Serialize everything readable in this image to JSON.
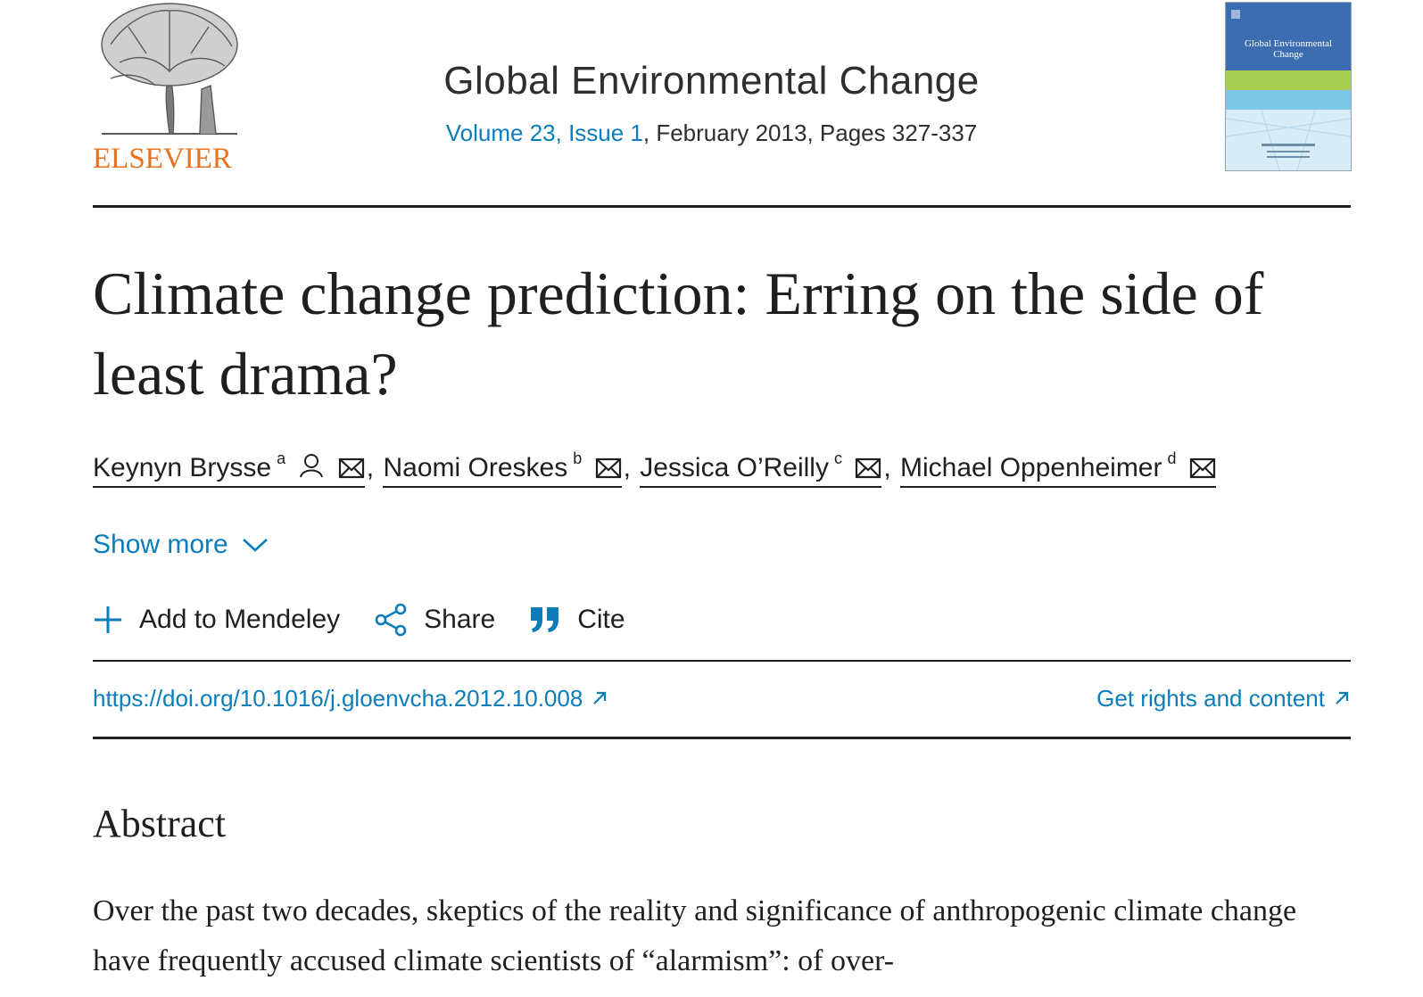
{
  "header": {
    "publisher_logo_text": "ELSEVIER",
    "journal_title": "Global Environmental Change",
    "volume_issue": "Volume 23, Issue 1",
    "date_pages": ", February 2013, Pages 327-337",
    "cover_title": "Global Environmental Change"
  },
  "article": {
    "title": "Climate change prediction: Erring on the side of least drama?",
    "authors": [
      {
        "name": "Keynyn Brysse",
        "sup": "a",
        "corresponding": true
      },
      {
        "name": "Naomi Oreskes",
        "sup": "b",
        "corresponding": false
      },
      {
        "name": "Jessica O’Reilly",
        "sup": "c",
        "corresponding": false
      },
      {
        "name": "Michael Oppenheimer",
        "sup": "d",
        "corresponding": false
      }
    ],
    "separator": ",",
    "show_more": "Show more"
  },
  "actions": {
    "mendeley": "Add to Mendeley",
    "share": "Share",
    "cite": "Cite"
  },
  "links": {
    "doi": "https://doi.org/10.1016/j.gloenvcha.2012.10.008",
    "rights": "Get rights and content"
  },
  "abstract": {
    "heading": "Abstract",
    "text": "Over the past two decades, skeptics of the reality and significance of anthropogenic climate change have frequently accused climate scientists of “alarmism”: of over-"
  },
  "colors": {
    "link": "#0c7dbb",
    "logo_orange": "#e9711c",
    "text": "#1f1f1f"
  }
}
